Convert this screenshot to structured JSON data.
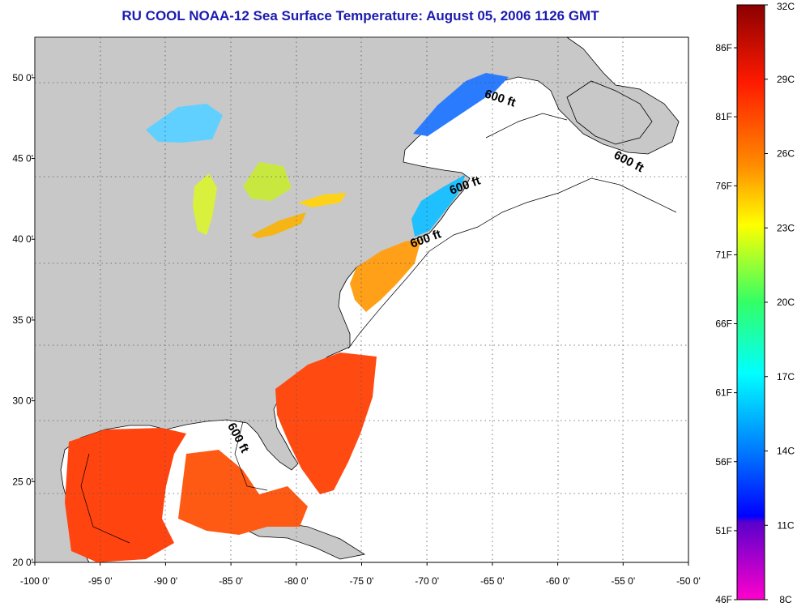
{
  "title": "RU COOL  NOAA-12  Sea Surface Temperature:  August 05, 2006 1126 GMT",
  "map": {
    "lon_range": [
      -100,
      -50
    ],
    "lat_range": [
      20,
      52.5
    ],
    "lon_ticks": [
      "-100 0'",
      "-95 0'",
      "-90 0'",
      "-85 0'",
      "-80 0'",
      "-75 0'",
      "-70 0'",
      "-65 0'",
      "-60 0'",
      "-55 0'",
      "-50 0'"
    ],
    "lat_ticks": [
      "20 0'",
      "25 0'",
      "30 0'",
      "35 0'",
      "40 0'",
      "45 0'",
      "50 0'"
    ],
    "contour_labels": [
      {
        "text": "600 ft",
        "lon": -64.5,
        "lat": 48.5,
        "rotate": 18
      },
      {
        "text": "600 ft",
        "lon": -54.7,
        "lat": 44.6,
        "rotate": 28
      },
      {
        "text": "600 ft",
        "lon": -67.0,
        "lat": 43.1,
        "rotate": -20
      },
      {
        "text": "600 ft",
        "lon": -70.0,
        "lat": 39.8,
        "rotate": -20
      },
      {
        "text": "600 ft",
        "lon": -84.7,
        "lat": 27.6,
        "rotate": 62
      }
    ],
    "colors": {
      "land": "#c8c8c8",
      "ocean_no_data": "#ffffff",
      "grid": "#555555"
    }
  },
  "colorbar": {
    "celsius_labels": [
      "32C",
      "29C",
      "26C",
      "23C",
      "20C",
      "17C",
      "14C",
      "11C",
      "8C"
    ],
    "fahrenheit_labels": [
      "86F",
      "81F",
      "76F",
      "71F",
      "66F",
      "61F",
      "56F",
      "51F",
      "46F"
    ]
  }
}
